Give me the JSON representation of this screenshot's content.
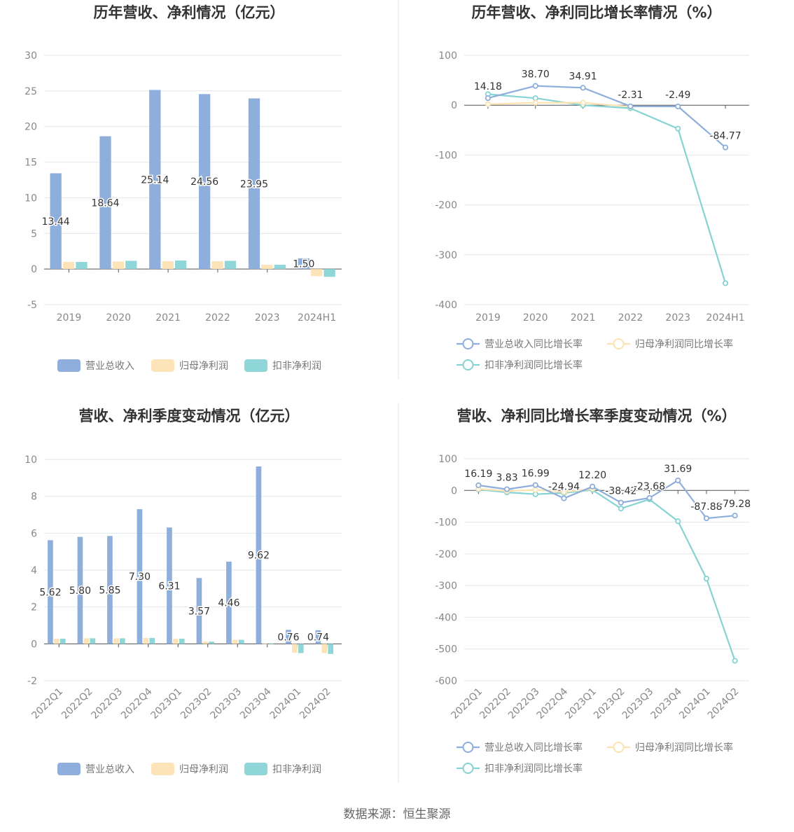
{
  "footer": {
    "source": "数据来源：恒生聚源"
  },
  "legend_labels": {
    "bars": [
      "营业总收入",
      "归母净利润",
      "扣非净利润"
    ],
    "lines": [
      "营业总收入同比增长率",
      "归母净利润同比增长率",
      "扣非净利润同比增长率"
    ]
  },
  "colors": {
    "revenue": "#8eaedb",
    "net_profit": "#fde3b1",
    "deducted_profit": "#86d3d3",
    "revenue_bar": "#8eaedb",
    "net_bar": "#fde3b8",
    "ded_bar": "#8ed6d8"
  },
  "chart_data": [
    {
      "type": "bar",
      "title": "历年营收、净利情况（亿元）",
      "categories": [
        "2019",
        "2020",
        "2021",
        "2022",
        "2023",
        "2024H1"
      ],
      "ylim": [
        -5,
        30
      ],
      "yticks": [
        -5,
        0,
        5,
        10,
        15,
        20,
        25,
        30
      ],
      "grid": true,
      "legend_position": "bottom",
      "series": [
        {
          "name": "营业总收入",
          "values": [
            13.44,
            18.64,
            25.14,
            24.56,
            23.95,
            1.5
          ],
          "labels": [
            "13.44",
            "18.64",
            "25.14",
            "24.56",
            "23.95",
            "1.50"
          ]
        },
        {
          "name": "归母净利润",
          "values": [
            1.0,
            1.05,
            1.1,
            1.1,
            0.6,
            -1.0
          ]
        },
        {
          "name": "扣非净利润",
          "values": [
            1.0,
            1.15,
            1.2,
            1.15,
            0.6,
            -1.1
          ]
        }
      ]
    },
    {
      "type": "line",
      "title": "历年营收、净利同比增长率情况（%）",
      "categories": [
        "2019",
        "2020",
        "2021",
        "2022",
        "2023",
        "2024H1"
      ],
      "ylim": [
        -400,
        100
      ],
      "yticks": [
        -400,
        -300,
        -200,
        -100,
        0,
        100
      ],
      "grid": true,
      "legend_position": "bottom",
      "series": [
        {
          "name": "营业总收入同比增长率",
          "values": [
            14.18,
            38.7,
            34.91,
            -2.31,
            -2.49,
            -84.77
          ],
          "labels": [
            "14.18",
            "38.70",
            "34.91",
            "-2.31",
            "-2.49",
            "-84.77"
          ]
        },
        {
          "name": "归母净利润同比增长率",
          "values": [
            2,
            5,
            5,
            -3,
            null,
            null
          ]
        },
        {
          "name": "扣非净利润同比增长率",
          "values": [
            22,
            14,
            0,
            -6,
            -47,
            -357
          ]
        }
      ]
    },
    {
      "type": "bar",
      "title": "营收、净利季度变动情况（亿元）",
      "categories": [
        "2022Q1",
        "2022Q2",
        "2022Q3",
        "2022Q4",
        "2023Q1",
        "2023Q2",
        "2023Q3",
        "2023Q4",
        "2024Q1",
        "2024Q2"
      ],
      "ylim": [
        -2,
        10
      ],
      "yticks": [
        -2,
        0,
        2,
        4,
        6,
        8,
        10
      ],
      "grid": true,
      "legend_position": "bottom",
      "series": [
        {
          "name": "营业总收入",
          "values": [
            5.62,
            5.8,
            5.85,
            7.3,
            6.31,
            3.57,
            4.46,
            9.62,
            0.76,
            0.74
          ],
          "labels": [
            "5.62",
            "5.80",
            "5.85",
            "7.30",
            "6.31",
            "3.57",
            "4.46",
            "9.62",
            "0.76",
            "0.74"
          ]
        },
        {
          "name": "归母净利润",
          "values": [
            0.28,
            0.3,
            0.3,
            0.32,
            0.28,
            0.12,
            0.22,
            0.0,
            -0.48,
            -0.5
          ]
        },
        {
          "name": "扣非净利润",
          "values": [
            0.28,
            0.3,
            0.3,
            0.32,
            0.28,
            0.12,
            0.22,
            0.0,
            -0.5,
            -0.55
          ]
        }
      ]
    },
    {
      "type": "line",
      "title": "营收、净利同比增长率季度变动情况（%）",
      "categories": [
        "2022Q1",
        "2022Q2",
        "2022Q3",
        "2022Q4",
        "2023Q1",
        "2023Q2",
        "2023Q3",
        "2023Q4",
        "2024Q1",
        "2024Q2"
      ],
      "ylim": [
        -600,
        100
      ],
      "yticks": [
        -600,
        -500,
        -400,
        -300,
        -200,
        -100,
        0,
        100
      ],
      "grid": true,
      "legend_position": "bottom",
      "series": [
        {
          "name": "营业总收入同比增长率",
          "values": [
            16.19,
            3.83,
            16.99,
            -24.94,
            12.2,
            -38.42,
            -23.68,
            31.69,
            -87.88,
            -79.28
          ],
          "labels": [
            "16.19",
            "3.83",
            "16.99",
            "-24.94",
            "12.20",
            "-38.42",
            "-23.68",
            "31.69",
            "-87.88",
            "-79.28"
          ]
        },
        {
          "name": "归母净利润同比增长率",
          "values": [
            5,
            -2,
            2,
            -5,
            5,
            null,
            null,
            null,
            null,
            null
          ]
        },
        {
          "name": "扣非净利润同比增长率",
          "values": [
            3,
            -6,
            -12,
            -8,
            2,
            -57,
            -28,
            -97,
            -278,
            -537
          ]
        }
      ]
    }
  ]
}
